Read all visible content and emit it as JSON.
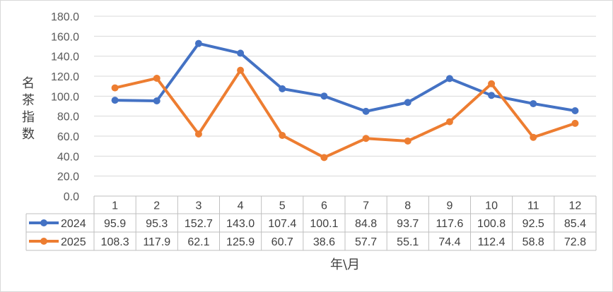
{
  "chart_data": {
    "type": "line",
    "categories": [
      "1",
      "2",
      "3",
      "4",
      "5",
      "6",
      "7",
      "8",
      "9",
      "10",
      "11",
      "12"
    ],
    "series": [
      {
        "name": "2024",
        "color": "#4472c4",
        "values": [
          95.9,
          95.3,
          152.7,
          143.0,
          107.4,
          100.1,
          84.8,
          93.7,
          117.6,
          100.8,
          92.5,
          85.4
        ],
        "labels": [
          "95.9",
          "95.3",
          "152.7",
          "143.0",
          "107.4",
          "100.1",
          "84.8",
          "93.7",
          "117.6",
          "100.8",
          "92.5",
          "85.4"
        ]
      },
      {
        "name": "2025",
        "color": "#ed7d31",
        "values": [
          108.3,
          117.9,
          62.1,
          125.9,
          60.7,
          38.6,
          57.7,
          55.1,
          74.4,
          112.4,
          58.8,
          72.8
        ],
        "labels": [
          "108.3",
          "117.9",
          "62.1",
          "125.9",
          "60.7",
          "38.6",
          "57.7",
          "55.1",
          "74.4",
          "112.4",
          "58.8",
          "72.8"
        ]
      }
    ],
    "yticks": [
      "0.0",
      "20.0",
      "40.0",
      "60.0",
      "80.0",
      "100.0",
      "120.0",
      "140.0",
      "160.0",
      "180.0"
    ],
    "ylim": [
      0,
      180
    ],
    "ylabel": "名茶指数",
    "xlabel": "年\\月",
    "grid": true,
    "legend": "data-table"
  }
}
